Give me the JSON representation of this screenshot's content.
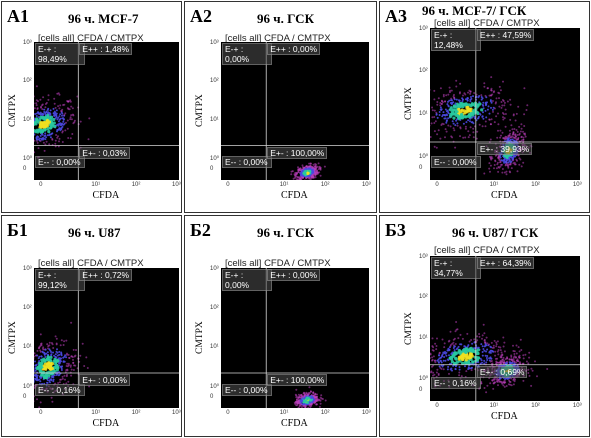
{
  "colors": {
    "plot_bg": "#000000",
    "gate": "#d8d8d8",
    "density_low": "#c040c0",
    "density_mid": "#4a48e0",
    "density_high": "#28c8a0",
    "density_peak": "#f0e020"
  },
  "x_ticks": [
    "0",
    "10¹",
    "10²",
    "10³"
  ],
  "y_ticks": [
    "10³",
    "10²",
    "10¹",
    "10⁰",
    "0"
  ],
  "chart_data": [
    {
      "type": "scatter",
      "panel": "A1",
      "title": "96 ч. MCF-7",
      "subtitle": "[cells all] CFDA / CMTPX",
      "xlabel": "CFDA",
      "ylabel": "CMTPX",
      "quadrants": {
        "ul": "E-+ : 98,49%",
        "ur": "E++ : 1,48%",
        "ll": "E-- : 0,00%",
        "lr": "E+- : 0,03%"
      },
      "populations": [
        {
          "x": -0.3,
          "y": 0.9,
          "spread": [
            0.45,
            0.35
          ]
        }
      ]
    },
    {
      "type": "scatter",
      "panel": "A2",
      "title": "96 ч. ГСК",
      "subtitle": "[cells all] CFDA / CMTPX",
      "xlabel": "CFDA",
      "ylabel": "CMTPX",
      "quadrants": {
        "ul": "E-+ : 0,00%",
        "ur": "E++ : 0,00%",
        "ll": "E-- : 0,00%",
        "lr": "E+- : 100,00%"
      },
      "populations": [
        {
          "x": 1.55,
          "y": -0.35,
          "spread": [
            0.15,
            0.1
          ]
        }
      ]
    },
    {
      "type": "scatter",
      "panel": "A3",
      "title": "96 ч. MCF-7/ ГСК",
      "subtitle": "[cells all] CFDA / CMTPX",
      "xlabel": "CFDA",
      "ylabel": "CMTPX",
      "quadrants": {
        "ul": "E-+ : 12,48%",
        "ur": "E++ : 47,59%",
        "ll": "E-- : 0,00%",
        "lr": "E+- : 39,93%"
      },
      "populations": [
        {
          "x": 0.3,
          "y": 1.1,
          "spread": [
            0.6,
            0.3
          ]
        },
        {
          "x": 1.35,
          "y": 0.15,
          "spread": [
            0.2,
            0.25
          ]
        }
      ]
    },
    {
      "type": "scatter",
      "panel": "Б1",
      "title": "96 ч. U87",
      "subtitle": "[cells all] CFDA / CMTPX",
      "xlabel": "CFDA",
      "ylabel": "CMTPX",
      "quadrants": {
        "ul": "E-+ : 99,12%",
        "ur": "E++ : 0,72%",
        "ll": "E-- : 0,16%",
        "lr": "E+- : 0,00%"
      },
      "populations": [
        {
          "x": -0.2,
          "y": 0.5,
          "spread": [
            0.4,
            0.4
          ]
        }
      ]
    },
    {
      "type": "scatter",
      "panel": "Б2",
      "title": "96 ч. ГСК",
      "subtitle": "[cells all] CFDA / CMTPX",
      "xlabel": "CFDA",
      "ylabel": "CMTPX",
      "quadrants": {
        "ul": "E-+ : 0,00%",
        "ur": "E++ : 0,00%",
        "ll": "E-- : 0,00%",
        "lr": "E+- : 100,00%"
      },
      "populations": [
        {
          "x": 1.55,
          "y": -0.35,
          "spread": [
            0.15,
            0.1
          ]
        }
      ]
    },
    {
      "type": "scatter",
      "panel": "Б3",
      "title": "96 ч. U87/ ГСК",
      "subtitle": "[cells all] CFDA / CMTPX",
      "xlabel": "CFDA",
      "ylabel": "CMTPX",
      "quadrants": {
        "ul": "E-+ : 34,77%",
        "ur": "E++ : 64,39%",
        "ll": "E-- : 0,16%",
        "lr": "E+- : 0,69%"
      },
      "populations": [
        {
          "x": 0.3,
          "y": 0.55,
          "spread": [
            0.6,
            0.3
          ]
        },
        {
          "x": 1.3,
          "y": 0.2,
          "spread": [
            0.25,
            0.18
          ]
        }
      ]
    }
  ]
}
